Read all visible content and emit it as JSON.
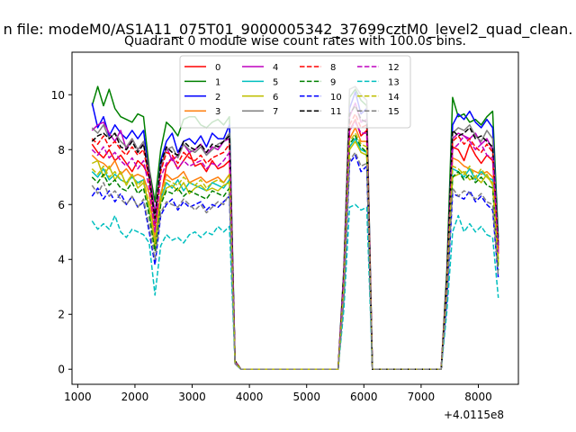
{
  "suptitle": "n file: modeM0/AS1A11_075T01_9000005342_37699cztM0_level2_quad_clean.",
  "chart_data": {
    "type": "line",
    "title": "Quadrant 0 module wise count rates with 100.0s bins.",
    "xlabel": "",
    "ylabel": "",
    "x_offset_label": "+4.0115e8",
    "xlim": [
      900,
      8700
    ],
    "ylim": [
      -0.55,
      11.55
    ],
    "xticks": [
      1000,
      2000,
      3000,
      4000,
      5000,
      6000,
      7000,
      8000
    ],
    "yticks": [
      0,
      2,
      4,
      6,
      8,
      10
    ],
    "grid": false,
    "legend": {
      "placement": "top-center",
      "ncol": 4
    },
    "x": [
      1250,
      1350,
      1450,
      1550,
      1650,
      1750,
      1850,
      1950,
      2050,
      2150,
      2250,
      2350,
      2450,
      2550,
      2650,
      2750,
      2850,
      2950,
      3050,
      3150,
      3250,
      3350,
      3450,
      3550,
      3650,
      3750,
      3850,
      3950,
      4050,
      4150,
      4250,
      4350,
      4450,
      4550,
      4650,
      4750,
      4850,
      4950,
      5050,
      5150,
      5250,
      5350,
      5450,
      5550,
      5650,
      5750,
      5850,
      5950,
      6050,
      6150,
      6250,
      6350,
      6450,
      6550,
      6650,
      6750,
      6850,
      6950,
      7050,
      7150,
      7250,
      7350,
      7450,
      7550,
      7650,
      7750,
      7850,
      7950,
      8050,
      8150,
      8250,
      8350
    ],
    "series": [
      {
        "name": "0",
        "color": "#ff0000",
        "dash": "solid",
        "values": [
          8.2,
          7.9,
          7.7,
          8.0,
          7.6,
          7.8,
          7.5,
          7.2,
          7.6,
          7.4,
          7.0,
          5.3,
          6.3,
          7.4,
          7.7,
          7.3,
          7.6,
          7.9,
          7.4,
          7.5,
          7.2,
          7.6,
          7.3,
          7.4,
          7.6,
          0.3,
          0.0,
          0,
          0,
          0,
          0,
          0,
          0,
          0,
          0,
          0,
          0,
          0,
          0,
          0,
          0,
          0,
          0,
          0,
          3.3,
          8.7,
          9.1,
          8.5,
          8.7,
          0.0,
          0,
          0,
          0,
          0,
          0,
          0,
          0,
          0,
          0,
          0,
          0,
          0,
          3.1,
          8.1,
          8.0,
          7.6,
          8.2,
          7.8,
          7.5,
          7.8,
          7.6,
          4.2
        ]
      },
      {
        "name": "1",
        "color": "#008000",
        "dash": "solid",
        "values": [
          9.6,
          10.3,
          9.6,
          10.2,
          9.5,
          9.2,
          9.1,
          9.0,
          9.3,
          9.2,
          7.3,
          6.1,
          8.0,
          9.0,
          8.8,
          8.5,
          9.1,
          9.2,
          9.2,
          8.9,
          8.8,
          9.0,
          9.1,
          8.9,
          9.2,
          0.3,
          0.0,
          0,
          0,
          0,
          0,
          0,
          0,
          0,
          0,
          0,
          0,
          0,
          0,
          0,
          0,
          0,
          0,
          0,
          3.7,
          9.9,
          10.2,
          9.8,
          9.6,
          0.0,
          0,
          0,
          0,
          0,
          0,
          0,
          0,
          0,
          0,
          0,
          0,
          0,
          3.6,
          9.9,
          9.2,
          9.3,
          9.0,
          9.1,
          8.9,
          9.2,
          9.4,
          4.8
        ]
      },
      {
        "name": "2",
        "color": "#0000ff",
        "dash": "solid",
        "values": [
          9.7,
          8.8,
          9.2,
          8.5,
          8.9,
          8.6,
          8.4,
          8.7,
          8.4,
          8.7,
          7.0,
          5.3,
          7.6,
          8.3,
          8.6,
          7.9,
          8.3,
          8.4,
          8.2,
          8.5,
          8.1,
          8.6,
          8.4,
          8.4,
          8.9,
          0.3,
          0.0,
          0,
          0,
          0,
          0,
          0,
          0,
          0,
          0,
          0,
          0,
          0,
          0,
          0,
          0,
          0,
          0,
          0,
          3.6,
          9.5,
          10.1,
          9.3,
          9.5,
          0.0,
          0,
          0,
          0,
          0,
          0,
          0,
          0,
          0,
          0,
          0,
          0,
          0,
          3.3,
          8.9,
          9.3,
          9.1,
          9.4,
          9.0,
          8.8,
          9.1,
          8.8,
          4.6
        ]
      },
      {
        "name": "3",
        "color": "#ff7f0e",
        "dash": "solid",
        "values": [
          7.8,
          7.6,
          7.5,
          7.3,
          7.6,
          7.1,
          7.3,
          7.0,
          7.1,
          7.0,
          6.4,
          4.8,
          6.4,
          7.1,
          6.9,
          7.0,
          7.2,
          6.8,
          6.9,
          7.0,
          6.8,
          6.9,
          7.0,
          6.8,
          7.1,
          0.25,
          0.0,
          0,
          0,
          0,
          0,
          0,
          0,
          0,
          0,
          0,
          0,
          0,
          0,
          0,
          0,
          0,
          0,
          0,
          3.1,
          8.4,
          8.8,
          8.3,
          8.3,
          0.0,
          0,
          0,
          0,
          0,
          0,
          0,
          0,
          0,
          0,
          0,
          0,
          0,
          2.9,
          7.7,
          7.6,
          7.4,
          7.3,
          7.2,
          7.1,
          7.2,
          7.0,
          4.0
        ]
      },
      {
        "name": "4",
        "color": "#bf00bf",
        "dash": "solid",
        "values": [
          8.7,
          8.9,
          9.0,
          8.6,
          8.3,
          8.7,
          8.0,
          8.4,
          8.0,
          8.2,
          7.2,
          5.7,
          7.3,
          8.1,
          7.6,
          7.8,
          8.2,
          7.9,
          8.0,
          8.2,
          7.8,
          8.1,
          8.0,
          8.3,
          8.4,
          0.3,
          0.0,
          0,
          0,
          0,
          0,
          0,
          0,
          0,
          0,
          0,
          0,
          0,
          0,
          0,
          0,
          0,
          0,
          0,
          3.5,
          9.2,
          9.7,
          9.0,
          9.1,
          0.0,
          0,
          0,
          0,
          0,
          0,
          0,
          0,
          0,
          0,
          0,
          0,
          0,
          3.2,
          8.4,
          8.6,
          8.5,
          8.4,
          8.6,
          8.2,
          8.4,
          8.0,
          4.4
        ]
      },
      {
        "name": "5",
        "color": "#00bfbf",
        "dash": "solid",
        "values": [
          7.2,
          7.0,
          7.3,
          6.9,
          7.1,
          6.9,
          6.8,
          7.0,
          6.8,
          6.9,
          5.8,
          4.5,
          6.2,
          6.8,
          6.6,
          6.9,
          6.5,
          6.8,
          6.7,
          6.6,
          6.5,
          6.8,
          6.7,
          6.6,
          6.9,
          0.25,
          0.0,
          0,
          0,
          0,
          0,
          0,
          0,
          0,
          0,
          0,
          0,
          0,
          0,
          0,
          0,
          0,
          0,
          0,
          2.9,
          8.1,
          8.4,
          8.0,
          7.9,
          0.0,
          0,
          0,
          0,
          0,
          0,
          0,
          0,
          0,
          0,
          0,
          0,
          0,
          2.8,
          7.3,
          7.2,
          7.0,
          7.3,
          6.9,
          7.2,
          7.0,
          6.9,
          3.8
        ]
      },
      {
        "name": "6",
        "color": "#bfbf00",
        "dash": "solid",
        "values": [
          7.5,
          7.6,
          7.0,
          7.4,
          6.9,
          7.2,
          6.7,
          7.1,
          6.6,
          6.8,
          5.9,
          4.4,
          6.1,
          6.6,
          6.7,
          6.5,
          6.8,
          6.4,
          6.6,
          6.7,
          6.5,
          6.6,
          6.5,
          6.7,
          6.8,
          0.25,
          0.0,
          0,
          0,
          0,
          0,
          0,
          0,
          0,
          0,
          0,
          0,
          0,
          0,
          0,
          0,
          0,
          0,
          0,
          2.9,
          8.0,
          8.3,
          7.9,
          7.8,
          0.0,
          0,
          0,
          0,
          0,
          0,
          0,
          0,
          0,
          0,
          0,
          0,
          0,
          2.8,
          7.0,
          7.1,
          7.2,
          6.9,
          7.0,
          6.8,
          7.1,
          6.7,
          3.8
        ]
      },
      {
        "name": "7",
        "color": "#808080",
        "dash": "solid",
        "values": [
          8.8,
          8.6,
          8.9,
          8.4,
          8.6,
          8.3,
          8.1,
          8.4,
          8.0,
          8.3,
          7.0,
          5.4,
          7.4,
          8.0,
          8.1,
          7.7,
          8.2,
          8.0,
          7.9,
          8.1,
          7.8,
          8.0,
          8.2,
          8.3,
          8.6,
          0.3,
          0.0,
          0,
          0,
          0,
          0,
          0,
          0,
          0,
          0,
          0,
          0,
          0,
          0,
          0,
          0,
          0,
          0,
          0,
          3.6,
          10.2,
          10.3,
          10.0,
          9.8,
          0.0,
          0,
          0,
          0,
          0,
          0,
          0,
          0,
          0,
          0,
          0,
          0,
          0,
          3.3,
          8.6,
          8.8,
          8.7,
          8.9,
          8.5,
          8.3,
          8.7,
          8.4,
          4.6
        ]
      },
      {
        "name": "8",
        "color": "#ff0000",
        "dash": "dashed",
        "values": [
          8.4,
          8.2,
          8.5,
          8.1,
          8.3,
          8.0,
          7.8,
          8.1,
          7.8,
          8.0,
          6.9,
          5.1,
          7.2,
          7.9,
          7.8,
          7.5,
          7.9,
          7.7,
          7.6,
          7.8,
          7.5,
          7.7,
          7.8,
          7.9,
          8.2,
          0.3,
          0.0,
          0,
          0,
          0,
          0,
          0,
          0,
          0,
          0,
          0,
          0,
          0,
          0,
          0,
          0,
          0,
          0,
          0,
          3.4,
          8.9,
          9.3,
          8.8,
          8.9,
          0.0,
          0,
          0,
          0,
          0,
          0,
          0,
          0,
          0,
          0,
          0,
          0,
          0,
          3.2,
          8.3,
          8.5,
          8.2,
          8.4,
          8.1,
          7.9,
          8.2,
          7.9,
          4.3
        ]
      },
      {
        "name": "9",
        "color": "#008000",
        "dash": "dashed",
        "values": [
          7.0,
          6.8,
          7.1,
          6.7,
          6.9,
          6.6,
          6.5,
          6.8,
          6.4,
          6.6,
          5.6,
          4.3,
          6.0,
          6.5,
          6.4,
          6.6,
          6.3,
          6.5,
          6.4,
          6.3,
          6.2,
          6.5,
          6.4,
          6.3,
          6.6,
          0.25,
          0.0,
          0,
          0,
          0,
          0,
          0,
          0,
          0,
          0,
          0,
          0,
          0,
          0,
          0,
          0,
          0,
          0,
          0,
          2.8,
          8.2,
          8.5,
          8.1,
          7.9,
          0.0,
          0,
          0,
          0,
          0,
          0,
          0,
          0,
          0,
          0,
          0,
          0,
          0,
          2.7,
          7.0,
          7.2,
          6.9,
          7.1,
          6.8,
          7.0,
          6.7,
          6.6,
          3.6
        ]
      },
      {
        "name": "10",
        "color": "#0000ff",
        "dash": "dashed",
        "values": [
          6.3,
          6.6,
          6.2,
          6.5,
          6.1,
          6.4,
          6.0,
          6.3,
          5.9,
          6.1,
          5.0,
          3.8,
          5.6,
          6.0,
          6.2,
          5.8,
          6.1,
          5.9,
          6.0,
          6.1,
          5.8,
          6.0,
          5.9,
          6.1,
          6.3,
          0.2,
          0.0,
          0,
          0,
          0,
          0,
          0,
          0,
          0,
          0,
          0,
          0,
          0,
          0,
          0,
          0,
          0,
          0,
          0,
          2.6,
          7.5,
          7.8,
          7.2,
          7.4,
          0.0,
          0,
          0,
          0,
          0,
          0,
          0,
          0,
          0,
          0,
          0,
          0,
          0,
          2.5,
          6.4,
          6.3,
          6.2,
          6.5,
          6.1,
          6.3,
          6.0,
          5.8,
          3.3
        ]
      },
      {
        "name": "11",
        "color": "#000000",
        "dash": "dashed",
        "values": [
          8.3,
          8.5,
          8.6,
          8.4,
          8.6,
          8.1,
          8.0,
          8.3,
          7.9,
          8.2,
          7.0,
          5.5,
          7.5,
          8.1,
          7.9,
          7.8,
          8.3,
          8.1,
          8.0,
          8.2,
          7.9,
          8.2,
          8.1,
          8.3,
          8.5,
          0.3,
          0.0,
          0,
          0,
          0,
          0,
          0,
          0,
          0,
          0,
          0,
          0,
          0,
          0,
          0,
          0,
          0,
          0,
          0,
          3.5,
          9.3,
          9.6,
          9.1,
          9.0,
          0.0,
          0,
          0,
          0,
          0,
          0,
          0,
          0,
          0,
          0,
          0,
          0,
          0,
          3.3,
          8.7,
          8.5,
          8.6,
          8.8,
          8.4,
          8.5,
          8.3,
          8.1,
          4.5
        ]
      },
      {
        "name": "12",
        "color": "#bf00bf",
        "dash": "dashed",
        "values": [
          8.0,
          7.8,
          8.1,
          7.7,
          7.9,
          7.6,
          7.4,
          7.7,
          7.3,
          7.6,
          6.6,
          5.0,
          7.0,
          7.5,
          7.7,
          7.3,
          7.6,
          7.4,
          7.5,
          7.6,
          7.3,
          7.5,
          7.4,
          7.6,
          7.9,
          0.25,
          0.0,
          0,
          0,
          0,
          0,
          0,
          0,
          0,
          0,
          0,
          0,
          0,
          0,
          0,
          0,
          0,
          0,
          0,
          3.3,
          8.7,
          9.0,
          8.6,
          8.6,
          0.0,
          0,
          0,
          0,
          0,
          0,
          0,
          0,
          0,
          0,
          0,
          0,
          0,
          3.1,
          8.0,
          8.2,
          8.5,
          8.3,
          8.0,
          8.2,
          7.8,
          7.7,
          4.2
        ]
      },
      {
        "name": "13",
        "color": "#00bfbf",
        "dash": "dashed",
        "values": [
          5.4,
          5.1,
          5.3,
          5.1,
          5.6,
          5.0,
          4.8,
          5.1,
          5.0,
          4.9,
          4.6,
          2.7,
          4.5,
          4.9,
          4.7,
          4.8,
          4.6,
          4.9,
          5.0,
          4.8,
          5.0,
          4.9,
          5.2,
          5.0,
          5.2,
          0.2,
          0.0,
          0,
          0,
          0,
          0,
          0,
          0,
          0,
          0,
          0,
          0,
          0,
          0,
          0,
          0,
          0,
          0,
          0,
          2.2,
          5.9,
          6.0,
          5.8,
          5.9,
          0.0,
          0,
          0,
          0,
          0,
          0,
          0,
          0,
          0,
          0,
          0,
          0,
          0,
          2.1,
          5.0,
          5.6,
          5.0,
          5.3,
          5.0,
          5.2,
          4.9,
          4.8,
          2.6
        ]
      },
      {
        "name": "14",
        "color": "#bfbf00",
        "dash": "dashed",
        "values": [
          7.3,
          7.1,
          7.4,
          7.0,
          7.2,
          6.9,
          6.8,
          7.1,
          6.7,
          6.9,
          6.0,
          4.6,
          6.3,
          6.9,
          6.8,
          6.7,
          7.0,
          6.8,
          6.7,
          6.9,
          6.6,
          6.8,
          6.9,
          6.8,
          7.1,
          0.25,
          0.0,
          0,
          0,
          0,
          0,
          0,
          0,
          0,
          0,
          0,
          0,
          0,
          0,
          0,
          0,
          0,
          0,
          0,
          3.0,
          8.3,
          8.6,
          8.2,
          8.1,
          0.0,
          0,
          0,
          0,
          0,
          0,
          0,
          0,
          0,
          0,
          0,
          0,
          0,
          2.9,
          7.4,
          7.3,
          7.1,
          7.4,
          7.0,
          7.3,
          7.0,
          6.8,
          3.9
        ]
      },
      {
        "name": "15",
        "color": "#808080",
        "dash": "dashed",
        "values": [
          6.7,
          6.4,
          6.8,
          6.3,
          6.5,
          6.2,
          6.0,
          6.3,
          5.9,
          6.2,
          5.2,
          4.0,
          5.7,
          6.1,
          6.0,
          5.9,
          6.2,
          6.0,
          5.8,
          6.0,
          5.7,
          5.9,
          6.1,
          6.0,
          6.4,
          0.2,
          0.0,
          0,
          0,
          0,
          0,
          0,
          0,
          0,
          0,
          0,
          0,
          0,
          0,
          0,
          0,
          0,
          0,
          0,
          2.7,
          7.6,
          7.9,
          7.4,
          7.5,
          0.0,
          0,
          0,
          0,
          0,
          0,
          0,
          0,
          0,
          0,
          0,
          0,
          0,
          2.6,
          6.6,
          6.3,
          6.5,
          6.4,
          6.2,
          6.4,
          6.1,
          6.0,
          3.4
        ]
      }
    ]
  }
}
